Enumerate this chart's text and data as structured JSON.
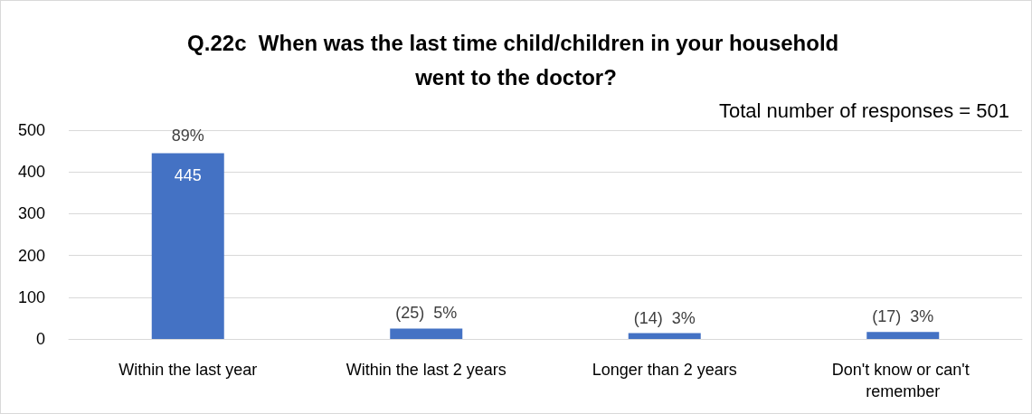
{
  "chart_data": {
    "type": "bar",
    "title": "Q.22c  When was the last time child/children in your household went to the doctor?",
    "categories": [
      "Within the last year",
      "Within the last 2 years",
      "Longer than 2 years",
      "Don't know or can't remember"
    ],
    "values": [
      445,
      25,
      14,
      17
    ],
    "color": "#4472c4",
    "value_labels": [
      "445",
      "(25)  5%",
      "(14)  3%",
      "(17)  3%"
    ],
    "annotations": [
      "Total number of responses = 501",
      {
        "text": "89%",
        "x": "Within the last year",
        "y": 445
      }
    ],
    "ylim": [
      0,
      500
    ],
    "yticks": [
      0,
      100,
      200,
      300,
      400,
      500
    ],
    "grid": "y"
  }
}
